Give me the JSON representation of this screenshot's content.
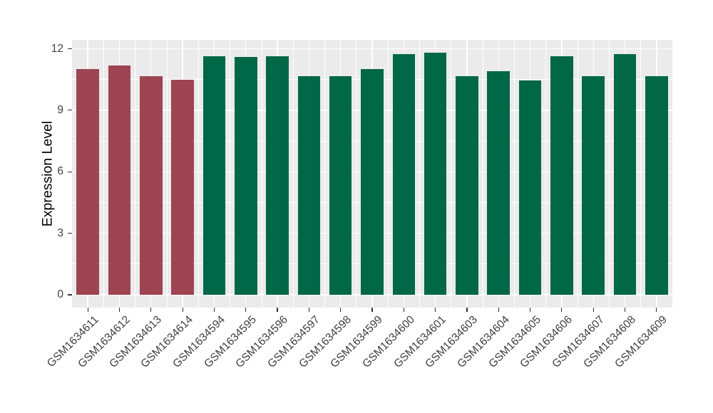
{
  "style": {
    "background": "#FFFFFF",
    "panel_background": "#EBEBEB",
    "grid_color": "#FFFFFF",
    "axis_text_color": "#404040",
    "axis_title_color": "#000000",
    "tick_mark_color": "#333333",
    "highlight_bar_color": "#9E4453",
    "default_bar_color": "#006747"
  },
  "chart_data": {
    "type": "bar",
    "title": "",
    "xlabel": "",
    "ylabel": "Expression Level",
    "categories": [
      "GSM1634611",
      "GSM1634612",
      "GSM1634613",
      "GSM1634614",
      "GSM1634594",
      "GSM1634595",
      "GSM1634596",
      "GSM1634597",
      "GSM1634598",
      "GSM1634599",
      "GSM1634600",
      "GSM1634601",
      "GSM1634603",
      "GSM1634604",
      "GSM1634605",
      "GSM1634606",
      "GSM1634607",
      "GSM1634608",
      "GSM1634609"
    ],
    "values": [
      11.0,
      11.2,
      10.65,
      10.5,
      11.65,
      11.6,
      11.65,
      10.65,
      10.65,
      11.0,
      11.75,
      11.8,
      10.65,
      10.9,
      10.45,
      11.65,
      10.65,
      11.75,
      10.65
    ],
    "colors": [
      "#9E4453",
      "#9E4453",
      "#9E4453",
      "#9E4453",
      "#006747",
      "#006747",
      "#006747",
      "#006747",
      "#006747",
      "#006747",
      "#006747",
      "#006747",
      "#006747",
      "#006747",
      "#006747",
      "#006747",
      "#006747",
      "#006747",
      "#006747"
    ],
    "yticks": [
      0,
      3,
      6,
      9,
      12
    ],
    "yminor": [
      1.5,
      4.5,
      7.5,
      10.5
    ],
    "ylim": [
      -0.6,
      12.45
    ],
    "x_tick_rotation_deg": 45,
    "grid": "major+minor",
    "legend": "none"
  }
}
